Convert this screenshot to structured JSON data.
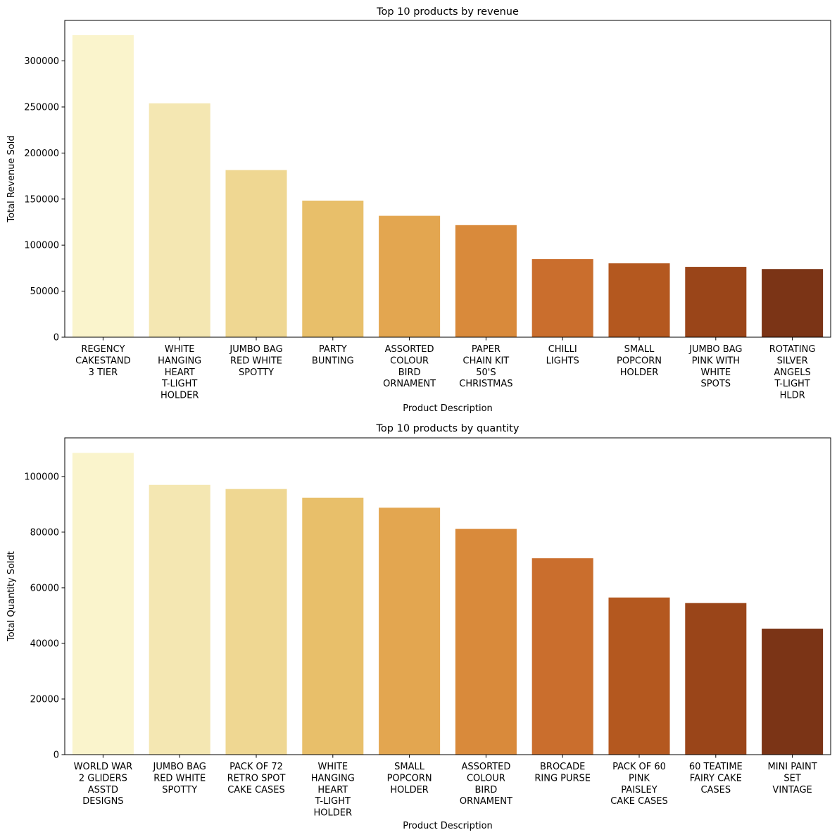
{
  "palette": [
    "#faf4cc",
    "#f4e7b2",
    "#efd792",
    "#e8bf6a",
    "#e3a650",
    "#d98a3b",
    "#ca6e2d",
    "#b4581f",
    "#9a4519",
    "#7b3416"
  ],
  "chart_data": [
    {
      "type": "bar",
      "title": "Top 10 products by revenue",
      "xlabel": "Product Description",
      "ylabel": "Total Revenue Sold",
      "ylim": [
        0,
        344000
      ],
      "yticks": [
        0,
        50000,
        100000,
        150000,
        200000,
        250000,
        300000
      ],
      "ytick_labels": [
        "0",
        "50000",
        "100000",
        "150000",
        "200000",
        "250000",
        "300000"
      ],
      "categories": [
        [
          "REGENCY",
          "CAKESTAND",
          "3 TIER"
        ],
        [
          "WHITE",
          "HANGING",
          "HEART",
          "T-LIGHT",
          "HOLDER"
        ],
        [
          "JUMBO BAG",
          "RED WHITE",
          "SPOTTY"
        ],
        [
          "PARTY",
          "BUNTING"
        ],
        [
          "ASSORTED",
          "COLOUR",
          "BIRD",
          "ORNAMENT"
        ],
        [
          "PAPER",
          "CHAIN KIT",
          "50'S",
          "CHRISTMAS"
        ],
        [
          "CHILLI",
          "LIGHTS"
        ],
        [
          "SMALL",
          "POPCORN",
          "HOLDER"
        ],
        [
          "JUMBO BAG",
          "PINK WITH",
          "WHITE",
          "SPOTS"
        ],
        [
          "ROTATING",
          "SILVER",
          "ANGELS",
          "T-LIGHT",
          "HLDR"
        ]
      ],
      "values": [
        328000,
        254000,
        181500,
        148300,
        131800,
        121700,
        84800,
        80200,
        76400,
        74000
      ]
    },
    {
      "type": "bar",
      "title": "Top 10 products by quantity",
      "xlabel": "Product Description",
      "ylabel": "Total Quantity Soldt",
      "ylim": [
        0,
        113900
      ],
      "yticks": [
        0,
        20000,
        40000,
        60000,
        80000,
        100000
      ],
      "ytick_labels": [
        "0",
        "20000",
        "40000",
        "60000",
        "80000",
        "100000"
      ],
      "categories": [
        [
          "WORLD WAR",
          "2 GLIDERS",
          "ASSTD",
          "DESIGNS"
        ],
        [
          "JUMBO BAG",
          "RED WHITE",
          "SPOTTY"
        ],
        [
          "PACK OF 72",
          "RETRO SPOT",
          "CAKE CASES"
        ],
        [
          "WHITE",
          "HANGING",
          "HEART",
          "T-LIGHT",
          "HOLDER"
        ],
        [
          "SMALL",
          "POPCORN",
          "HOLDER"
        ],
        [
          "ASSORTED",
          "COLOUR",
          "BIRD",
          "ORNAMENT"
        ],
        [
          "BROCADE",
          "RING PURSE"
        ],
        [
          "PACK OF 60",
          "PINK",
          "PAISLEY",
          "CAKE CASES"
        ],
        [
          "60 TEATIME",
          "FAIRY CAKE",
          "CASES"
        ],
        [
          "MINI PAINT",
          "SET",
          "VINTAGE"
        ]
      ],
      "values": [
        108500,
        97000,
        95500,
        92400,
        88800,
        81200,
        70600,
        56500,
        54500,
        45300
      ]
    }
  ]
}
